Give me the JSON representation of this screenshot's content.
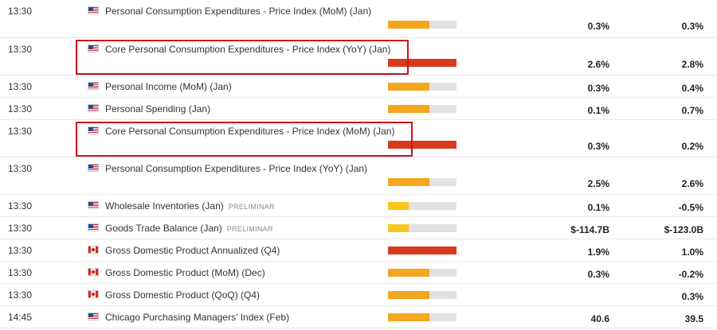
{
  "calendar": {
    "colors": {
      "high": "#d83a1e",
      "medium": "#f5a51e",
      "low": "#f7c81d"
    },
    "events": [
      {
        "time": "13:30",
        "country": "US",
        "flag_icon": "us-flag-icon",
        "title": "Personal Consumption Expenditures - Price Index (MoM) (Jan)",
        "tag": "",
        "importance": "medium",
        "level": 0.6,
        "actual": "0.3%",
        "forecast": "0.3%",
        "highlighted": false
      },
      {
        "time": "13:30",
        "country": "US",
        "flag_icon": "us-flag-icon",
        "title": "Core Personal Consumption Expenditures - Price Index (YoY) (Jan)",
        "tag": "",
        "importance": "high",
        "level": 1.0,
        "actual": "2.6%",
        "forecast": "2.8%",
        "highlighted": true
      },
      {
        "time": "13:30",
        "country": "US",
        "flag_icon": "us-flag-icon",
        "title": "Personal Income (MoM) (Jan)",
        "tag": "",
        "importance": "medium",
        "level": 0.6,
        "actual": "0.3%",
        "forecast": "0.4%",
        "highlighted": false
      },
      {
        "time": "13:30",
        "country": "US",
        "flag_icon": "us-flag-icon",
        "title": "Personal Spending (Jan)",
        "tag": "",
        "importance": "medium",
        "level": 0.6,
        "actual": "0.1%",
        "forecast": "0.7%",
        "highlighted": false
      },
      {
        "time": "13:30",
        "country": "US",
        "flag_icon": "us-flag-icon",
        "title": "Core Personal Consumption Expenditures - Price Index (MoM) (Jan)",
        "tag": "",
        "importance": "high",
        "level": 1.0,
        "actual": "0.3%",
        "forecast": "0.2%",
        "highlighted": true
      },
      {
        "time": "13:30",
        "country": "US",
        "flag_icon": "us-flag-icon",
        "title": "Personal Consumption Expenditures - Price Index (YoY) (Jan)",
        "tag": "",
        "importance": "medium",
        "level": 0.6,
        "actual": "2.5%",
        "forecast": "2.6%",
        "highlighted": false
      },
      {
        "time": "13:30",
        "country": "US",
        "flag_icon": "us-flag-icon",
        "title": "Wholesale Inventories (Jan)",
        "tag": "PRELIMINAR",
        "importance": "low",
        "level": 0.3,
        "actual": "0.1%",
        "forecast": "-0.5%",
        "highlighted": false
      },
      {
        "time": "13:30",
        "country": "US",
        "flag_icon": "us-flag-icon",
        "title": "Goods Trade Balance (Jan)",
        "tag": "PRELIMINAR",
        "importance": "low",
        "level": 0.3,
        "actual": "$-114.7B",
        "forecast": "$-123.0B",
        "highlighted": false
      },
      {
        "time": "13:30",
        "country": "CA",
        "flag_icon": "ca-flag-icon",
        "title": "Gross Domestic Product Annualized (Q4)",
        "tag": "",
        "importance": "high",
        "level": 1.0,
        "actual": "1.9%",
        "forecast": "1.0%",
        "highlighted": false
      },
      {
        "time": "13:30",
        "country": "CA",
        "flag_icon": "ca-flag-icon",
        "title": "Gross Domestic Product (MoM) (Dec)",
        "tag": "",
        "importance": "medium",
        "level": 0.6,
        "actual": "0.3%",
        "forecast": "-0.2%",
        "highlighted": false
      },
      {
        "time": "13:30",
        "country": "CA",
        "flag_icon": "ca-flag-icon",
        "title": "Gross Domestic Product (QoQ) (Q4)",
        "tag": "",
        "importance": "medium",
        "level": 0.6,
        "actual": "",
        "forecast": "0.3%",
        "highlighted": false
      },
      {
        "time": "14:45",
        "country": "US",
        "flag_icon": "us-flag-icon",
        "title": "Chicago Purchasing Managers' Index (Feb)",
        "tag": "",
        "importance": "medium",
        "level": 0.6,
        "actual": "40.6",
        "forecast": "39.5",
        "highlighted": false
      }
    ]
  }
}
